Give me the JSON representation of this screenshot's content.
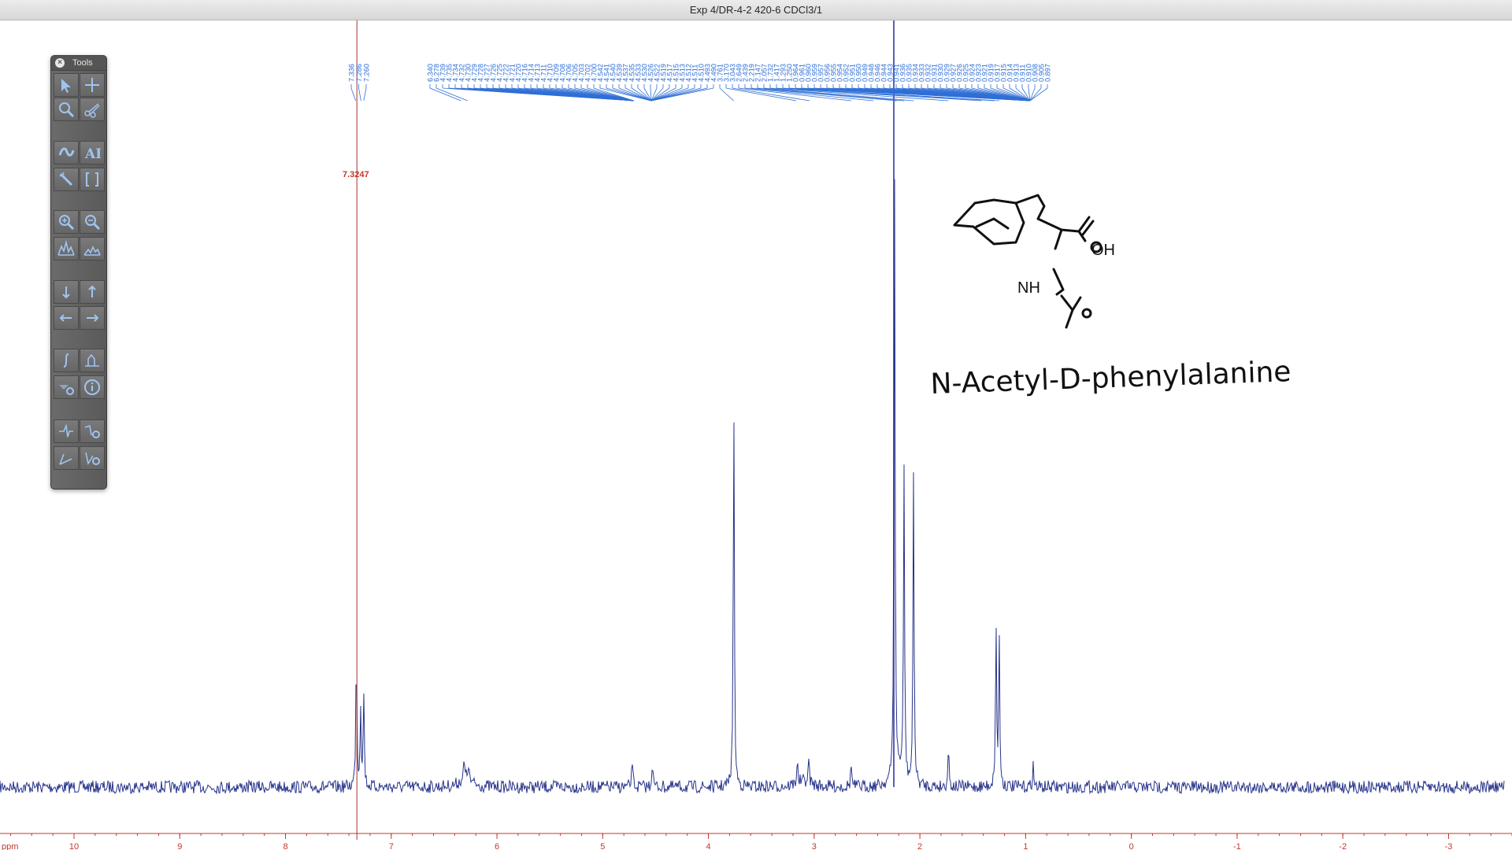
{
  "window": {
    "title": "Exp 4/DR-4-2 420-6 CDCl3/1"
  },
  "tools_panel": {
    "title": "Tools",
    "close_glyph": "×"
  },
  "cursor": {
    "value_label": "7.3247",
    "ppm": 7.3247
  },
  "annotation": {
    "compound_name": "N-Acetyl-D-phenylalanine"
  },
  "colors": {
    "trace": "#27348b",
    "peak_labels": "#2f6fd6",
    "axis": "#c0392b",
    "cursor": "#a83232",
    "ref_line": "#5b5fb5"
  },
  "chart_data": {
    "type": "line",
    "x_unit_label": "ppm",
    "xlim": [
      10.7,
      -3.6
    ],
    "x_reversed": true,
    "x_ticks": [
      10,
      9,
      8,
      7,
      6,
      5,
      4,
      3,
      2,
      1,
      0,
      -1,
      -2,
      -3
    ],
    "x_tick_labels": [
      "10",
      "9",
      "8",
      "7",
      "6",
      "5",
      "4",
      "3",
      "2",
      "1",
      "0",
      "-1",
      "-2",
      "-3"
    ],
    "peak_labels_group1": [
      "7.336",
      "7.286",
      "7.260"
    ],
    "peak_labels_group2": [
      "6.340",
      "6.278",
      "4.739",
      "4.735",
      "4.734",
      "4.732",
      "4.730",
      "4.729",
      "4.728",
      "4.727",
      "4.726",
      "4.725",
      "4.722",
      "4.721",
      "4.720",
      "4.716",
      "4.714",
      "4.713",
      "4.711",
      "4.710",
      "4.709",
      "4.708",
      "4.706",
      "4.705",
      "4.703",
      "4.702",
      "4.700",
      "4.542",
      "4.541",
      "4.540",
      "4.539",
      "4.537",
      "4.535",
      "4.533",
      "4.530",
      "4.526",
      "4.522",
      "4.519",
      "4.517",
      "4.515",
      "4.513",
      "4.512",
      "4.511",
      "4.510",
      "4.493",
      "4.490",
      "3.761",
      "3.170",
      "3.043",
      "2.649",
      "2.439",
      "2.219",
      "2.147",
      "2.057",
      "1.732",
      "1.417",
      "1.293",
      "1.250",
      "0.964",
      "0.961",
      "0.960",
      "0.959",
      "0.957",
      "0.956",
      "0.955",
      "0.954",
      "0.952",
      "0.951",
      "0.950",
      "0.949",
      "0.948",
      "0.946",
      "0.944",
      "0.943",
      "0.941",
      "0.936",
      "0.935",
      "0.934",
      "0.933",
      "0.932",
      "0.931",
      "0.930",
      "0.929",
      "0.927",
      "0.926",
      "0.925",
      "0.924",
      "0.923",
      "0.921",
      "0.919",
      "0.917",
      "0.915",
      "0.914",
      "0.913",
      "0.911",
      "0.910",
      "0.908",
      "0.905",
      "0.897"
    ],
    "peaks": [
      {
        "ppm": 7.33,
        "height": 0.3
      },
      {
        "ppm": 7.29,
        "height": 0.17
      },
      {
        "ppm": 7.26,
        "height": 0.2
      },
      {
        "ppm": 6.31,
        "height": 0.035
      },
      {
        "ppm": 6.27,
        "height": 0.035
      },
      {
        "ppm": 4.72,
        "height": 0.06
      },
      {
        "ppm": 4.53,
        "height": 0.06
      },
      {
        "ppm": 3.76,
        "height": 0.82
      },
      {
        "ppm": 3.16,
        "height": 0.05
      },
      {
        "ppm": 3.05,
        "height": 0.05
      },
      {
        "ppm": 2.65,
        "height": 0.05
      },
      {
        "ppm": 2.24,
        "height": 1.3
      },
      {
        "ppm": 2.15,
        "height": 0.66
      },
      {
        "ppm": 2.06,
        "height": 0.66
      },
      {
        "ppm": 1.73,
        "height": 0.09
      },
      {
        "ppm": 1.28,
        "height": 0.34
      },
      {
        "ppm": 1.25,
        "height": 0.32
      },
      {
        "ppm": 0.93,
        "height": 0.05
      }
    ]
  }
}
